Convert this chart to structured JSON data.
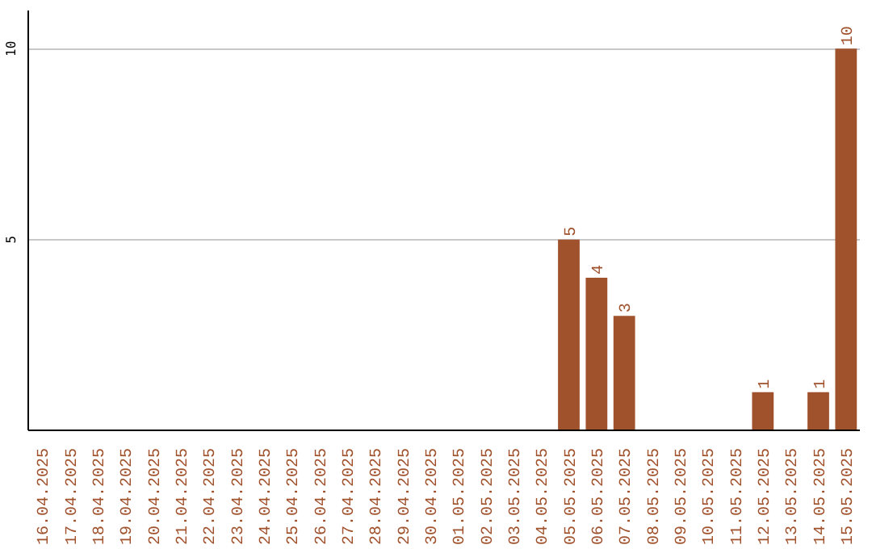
{
  "chart_data": {
    "type": "bar",
    "categories": [
      "16.04.2025",
      "17.04.2025",
      "18.04.2025",
      "19.04.2025",
      "20.04.2025",
      "21.04.2025",
      "22.04.2025",
      "23.04.2025",
      "24.04.2025",
      "25.04.2025",
      "26.04.2025",
      "27.04.2025",
      "28.04.2025",
      "29.04.2025",
      "30.04.2025",
      "01.05.2025",
      "02.05.2025",
      "03.05.2025",
      "04.05.2025",
      "05.05.2025",
      "06.05.2025",
      "07.05.2025",
      "08.05.2025",
      "09.05.2025",
      "10.05.2025",
      "11.05.2025",
      "12.05.2025",
      "13.05.2025",
      "14.05.2025",
      "15.05.2025"
    ],
    "values": [
      0,
      0,
      0,
      0,
      0,
      0,
      0,
      0,
      0,
      0,
      0,
      0,
      0,
      0,
      0,
      0,
      0,
      0,
      0,
      5,
      4,
      3,
      0,
      0,
      0,
      0,
      1,
      0,
      1,
      10
    ],
    "value_labels": [
      null,
      null,
      null,
      null,
      null,
      null,
      null,
      null,
      null,
      null,
      null,
      null,
      null,
      null,
      null,
      null,
      null,
      null,
      null,
      "5",
      "4",
      "3",
      null,
      null,
      null,
      null,
      "1",
      null,
      "1",
      "10"
    ],
    "color": "#a0522d",
    "ylim": [
      0,
      11
    ],
    "yticks": [
      5,
      10
    ],
    "grid": "y"
  }
}
